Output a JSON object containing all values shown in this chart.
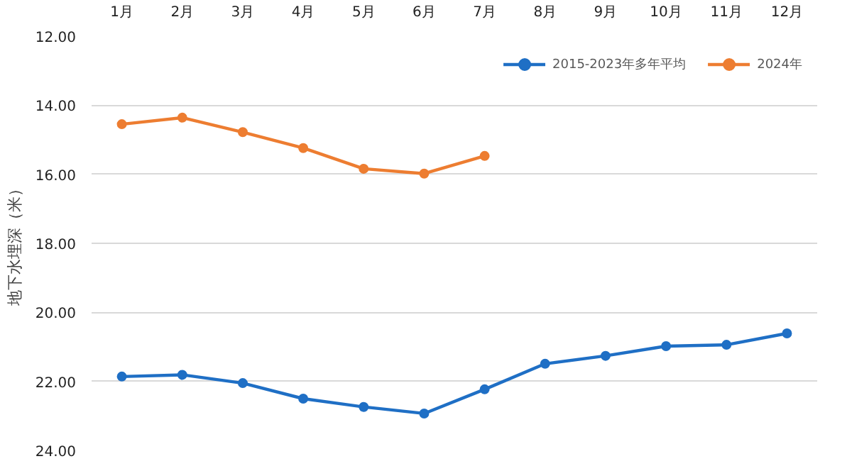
{
  "chart_data": {
    "type": "line",
    "ylabel": "地下水埋深（米）",
    "categories": [
      "1月",
      "2月",
      "3月",
      "4月",
      "5月",
      "6月",
      "7月",
      "8月",
      "9月",
      "10月",
      "11月",
      "12月"
    ],
    "series": [
      {
        "name": "2015-2023年多年平均",
        "color": "#1f6fc5",
        "values": [
          21.86,
          21.81,
          22.05,
          22.5,
          22.74,
          22.93,
          22.23,
          21.49,
          21.26,
          20.98,
          20.94,
          20.61
        ]
      },
      {
        "name": "2024年",
        "color": "#ed7d31",
        "values": [
          14.55,
          14.36,
          14.78,
          15.24,
          15.84,
          15.98,
          15.47,
          null,
          null,
          null,
          null,
          null
        ]
      }
    ],
    "ylim": [
      24,
      12
    ],
    "yticks": [
      {
        "value": 12,
        "label": "12.00"
      },
      {
        "value": 14,
        "label": "14.00"
      },
      {
        "value": 16,
        "label": "16.00"
      },
      {
        "value": 18,
        "label": "18.00"
      },
      {
        "value": 20,
        "label": "20.00"
      },
      {
        "value": 22,
        "label": "22.00"
      },
      {
        "value": 24,
        "label": "24.00"
      }
    ],
    "grid": "y",
    "legend": "top right",
    "marker": "circle",
    "line_style": "solid"
  }
}
